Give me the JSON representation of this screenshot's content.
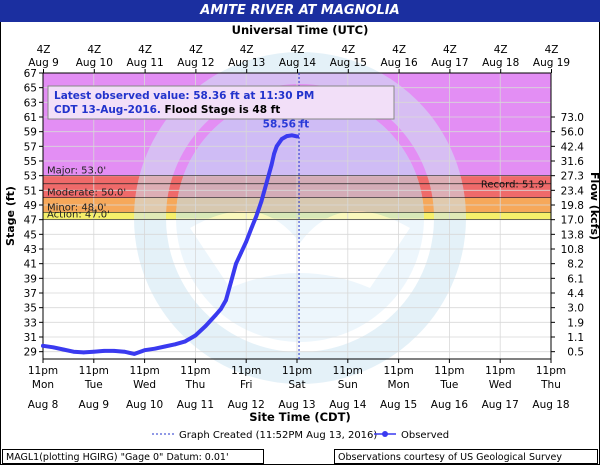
{
  "title": "AMITE RIVER AT MAGNOLIA",
  "top_axis_title": "Universal Time (UTC)",
  "bottom_axis_title": "Site Time (CDT)",
  "y_left_title": "Stage (ft)",
  "y_right_title": "Flow (kcfs)",
  "top_ticks": [
    {
      "t": "4Z",
      "d": "Aug 9"
    },
    {
      "t": "4Z",
      "d": "Aug 10"
    },
    {
      "t": "4Z",
      "d": "Aug 11"
    },
    {
      "t": "4Z",
      "d": "Aug 12"
    },
    {
      "t": "4Z",
      "d": "Aug 13"
    },
    {
      "t": "4Z",
      "d": "Aug 14"
    },
    {
      "t": "4Z",
      "d": "Aug 15"
    },
    {
      "t": "4Z",
      "d": "Aug 16"
    },
    {
      "t": "4Z",
      "d": "Aug 17"
    },
    {
      "t": "4Z",
      "d": "Aug 18"
    },
    {
      "t": "4Z",
      "d": "Aug 19"
    }
  ],
  "bottom_ticks": [
    {
      "t": "11pm",
      "day": "Mon",
      "d": "Aug 8"
    },
    {
      "t": "11pm",
      "day": "Tue",
      "d": "Aug 9"
    },
    {
      "t": "11pm",
      "day": "Wed",
      "d": "Aug 10"
    },
    {
      "t": "11pm",
      "day": "Thu",
      "d": "Aug 11"
    },
    {
      "t": "11pm",
      "day": "Fri",
      "d": "Aug 12"
    },
    {
      "t": "11pm",
      "day": "Sat",
      "d": "Aug 13"
    },
    {
      "t": "11pm",
      "day": "Sun",
      "d": "Aug 14"
    },
    {
      "t": "11pm",
      "day": "Mon",
      "d": "Aug 15"
    },
    {
      "t": "11pm",
      "day": "Tue",
      "d": "Aug 16"
    },
    {
      "t": "11pm",
      "day": "Wed",
      "d": "Aug 17"
    },
    {
      "t": "11pm",
      "day": "Thu",
      "d": "Aug 18"
    }
  ],
  "y_ticks": [
    "29",
    "31",
    "33",
    "35",
    "37",
    "39",
    "41",
    "43",
    "45",
    "47",
    "49",
    "51",
    "53",
    "55",
    "57",
    "59",
    "61",
    "63",
    "65",
    "67"
  ],
  "flow_ticks": [
    {
      "v": "0.5",
      "s": 29
    },
    {
      "v": "1.1",
      "s": 31
    },
    {
      "v": "1.9",
      "s": 33
    },
    {
      "v": "3.0",
      "s": 35
    },
    {
      "v": "4.4",
      "s": 37
    },
    {
      "v": "6.1",
      "s": 39
    },
    {
      "v": "8.2",
      "s": 41
    },
    {
      "v": "10.8",
      "s": 43
    },
    {
      "v": "13.8",
      "s": 45
    },
    {
      "v": "17.0",
      "s": 47
    },
    {
      "v": "19.8",
      "s": 49
    },
    {
      "v": "23.4",
      "s": 51
    },
    {
      "v": "27.3",
      "s": 53
    },
    {
      "v": "31.6",
      "s": 55
    },
    {
      "v": "42.4",
      "s": 57
    },
    {
      "v": "56.0",
      "s": 59
    },
    {
      "v": "73.0",
      "s": 61
    }
  ],
  "flood_categories": [
    {
      "label": "Major: 53.0'",
      "from": 53,
      "to": 67,
      "color": "#e38ef4"
    },
    {
      "label": "Moderate:  50.0'",
      "from": 50,
      "to": 53,
      "color": "#ef6a6a"
    },
    {
      "label": "Minor:  48.0'",
      "from": 48,
      "to": 50,
      "color": "#f6a85a"
    },
    {
      "label": "Action:  47.0'",
      "from": 47,
      "to": 48,
      "color": "#f6f06a"
    }
  ],
  "record": {
    "label": "Record:  51.9'",
    "value": 51.9
  },
  "latest_box": {
    "line1": "Latest observed value: 58.36 ft at 11:30 PM",
    "line2_blue": "CDT 13-Aug-2016.",
    "line2_black": "Flood Stage is 48 ft"
  },
  "peak_label": "58.56 ft",
  "legend": {
    "graph_created": "Graph Created (11:52PM Aug 13, 2016)",
    "observed": "Observed"
  },
  "footer": {
    "left": "MAGL1(plotting HGIRG) \"Gage 0\" Datum: 0.01'",
    "right": "Observations courtesy of US Geological Survey"
  },
  "chart_data": {
    "type": "line",
    "title": "AMITE RIVER AT MAGNOLIA",
    "xlabel": "Site Time (CDT)",
    "ylabel": "Stage (ft)",
    "ylim": [
      28,
      67
    ],
    "x_units": "days since Aug 8 11pm CDT",
    "xlim": [
      0,
      10
    ],
    "series": [
      {
        "name": "Observed",
        "color": "#3a3af0",
        "x": [
          0,
          0.2,
          0.4,
          0.6,
          0.8,
          1.0,
          1.2,
          1.4,
          1.6,
          1.8,
          2.0,
          2.2,
          2.4,
          2.6,
          2.8,
          3.0,
          3.2,
          3.4,
          3.5,
          3.6,
          3.7,
          3.8,
          3.9,
          4.0,
          4.1,
          4.2,
          4.3,
          4.4,
          4.5,
          4.55,
          4.6,
          4.7,
          4.8,
          4.9,
          5.0
        ],
        "values": [
          29.8,
          29.6,
          29.3,
          29.0,
          28.9,
          29.0,
          29.1,
          29.1,
          29.0,
          28.7,
          29.2,
          29.4,
          29.7,
          30.0,
          30.4,
          31.2,
          32.5,
          34.0,
          34.8,
          36.0,
          38.5,
          41.0,
          42.5,
          44.0,
          45.8,
          47.5,
          49.5,
          52.0,
          54.5,
          56.0,
          57.0,
          58.0,
          58.4,
          58.5,
          58.36
        ]
      }
    ],
    "graph_created_x": 5.04
  }
}
